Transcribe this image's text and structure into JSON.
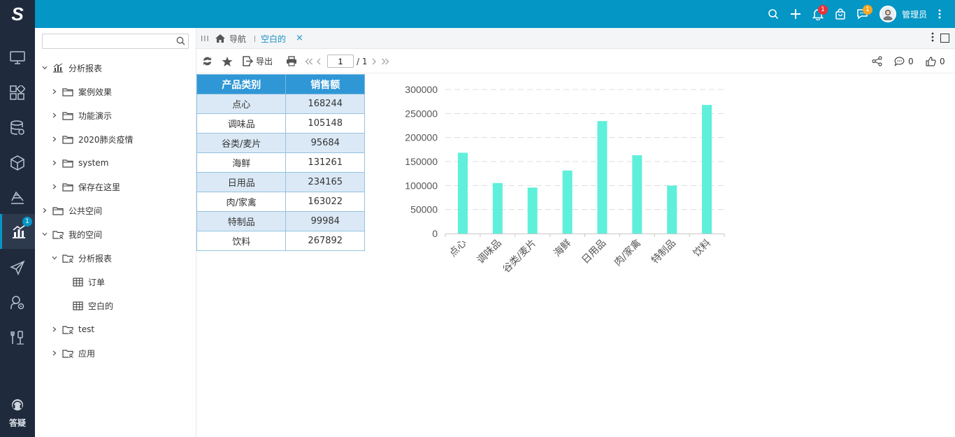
{
  "app": {
    "logo_letter": "S"
  },
  "header": {
    "user_name": "管理员",
    "notifications_count": "1",
    "messages_count": "1",
    "icons": [
      "search-icon",
      "plus-icon",
      "bell-icon",
      "bag-icon",
      "chat-icon",
      "avatar",
      "more-vertical-icon"
    ],
    "colors": {
      "header_bg": "#0496c5",
      "nav_bg": "#1f2a3c",
      "badge_red": "#e8333a",
      "badge_orange": "#f5a623"
    }
  },
  "left_nav": {
    "items": [
      {
        "icon": "monitor-icon"
      },
      {
        "icon": "blocks-icon"
      },
      {
        "icon": "database-icon"
      },
      {
        "icon": "cube-icon"
      },
      {
        "icon": "layers-icon"
      },
      {
        "icon": "bar-chart-icon",
        "badge": "1",
        "active": true
      },
      {
        "icon": "paper-plane-icon"
      },
      {
        "icon": "user-settings-icon"
      },
      {
        "icon": "tools-icon"
      }
    ],
    "help_label": "答疑"
  },
  "tree": {
    "search_placeholder": "",
    "nodes": [
      {
        "label": "分析报表",
        "icon": "report-icon",
        "expanded": true
      },
      {
        "label": "案例效果",
        "icon": "folder-icon"
      },
      {
        "label": "功能演示",
        "icon": "folder-icon"
      },
      {
        "label": "2020肺炎疫情",
        "icon": "folder-icon"
      },
      {
        "label": "system",
        "icon": "folder-icon"
      },
      {
        "label": "保存在这里",
        "icon": "folder-icon"
      },
      {
        "label": "公共空间",
        "icon": "folder-icon"
      },
      {
        "label": "我的空间",
        "icon": "user-folder-icon",
        "expanded": true
      },
      {
        "label": "分析报表",
        "icon": "user-folder-icon",
        "expanded": true
      },
      {
        "label": "订单",
        "icon": "table-icon"
      },
      {
        "label": "空白的",
        "icon": "table-icon"
      },
      {
        "label": "test",
        "icon": "user-folder-icon"
      },
      {
        "label": "应用",
        "icon": "user-folder-icon"
      }
    ]
  },
  "tabs": {
    "home_label": "导航",
    "active_label": "空白的",
    "close_glyph": "×",
    "collapse_glyph": "III"
  },
  "toolbar": {
    "export_label": "导出",
    "page_current": "1",
    "page_total": "/ 1",
    "comment_count": "0",
    "like_count": "0"
  },
  "report": {
    "headers": [
      "产品类别",
      "销售额"
    ],
    "rows": [
      [
        "点心",
        "168244"
      ],
      [
        "调味品",
        "105148"
      ],
      [
        "谷类/麦片",
        "95684"
      ],
      [
        "海鲜",
        "131261"
      ],
      [
        "日用品",
        "234165"
      ],
      [
        "肉/家禽",
        "163022"
      ],
      [
        "特制品",
        "99984"
      ],
      [
        "饮料",
        "267892"
      ]
    ]
  },
  "chart_data": {
    "type": "bar",
    "categories": [
      "点心",
      "调味品",
      "谷类/麦片",
      "海鲜",
      "日用品",
      "肉/家禽",
      "特制品",
      "饮料"
    ],
    "values": [
      168244,
      105148,
      95684,
      131261,
      234165,
      163022,
      99984,
      267892
    ],
    "ylim": [
      0,
      300000
    ],
    "yticks": [
      "0",
      "50000",
      "100000",
      "150000",
      "200000",
      "250000",
      "300000"
    ],
    "grid": true,
    "bar_color": "#5ef0db",
    "title": "",
    "xlabel": "",
    "ylabel": ""
  }
}
